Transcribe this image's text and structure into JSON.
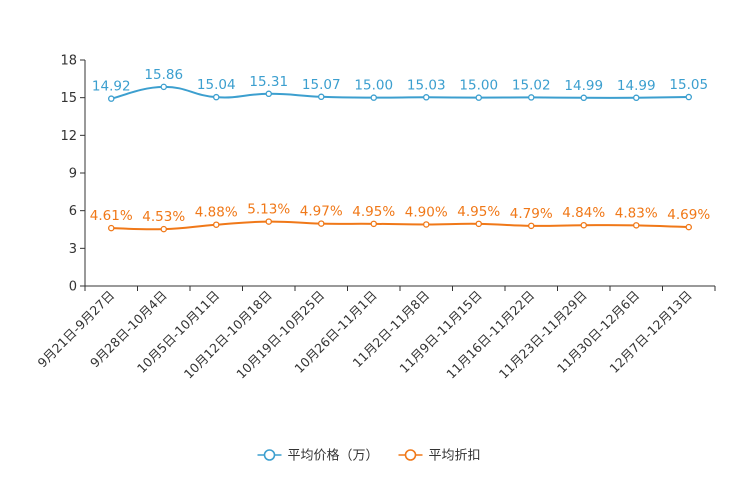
{
  "chart_data": {
    "type": "line",
    "title": "",
    "xlabel": "",
    "ylabel": "",
    "ylim": [
      0,
      18
    ],
    "yticks": [
      0,
      3,
      6,
      9,
      12,
      15,
      18
    ],
    "grid": false,
    "legend_position": "bottom-center",
    "categories": [
      "9月21日-9月27日",
      "9月28日-10月4日",
      "10月5日-10月11日",
      "10月12日-10月18日",
      "10月19日-10月25日",
      "10月26日-11月1日",
      "11月2日-11月8日",
      "11月9日-11月15日",
      "11月16日-11月22日",
      "11月23日-11月29日",
      "11月30日-12月6日",
      "12月7日-12月13日"
    ],
    "series": [
      {
        "name": "平均价格（万）",
        "color": "#3c9fcf",
        "values": [
          14.92,
          15.86,
          15.04,
          15.31,
          15.07,
          15.0,
          15.03,
          15.0,
          15.02,
          14.99,
          14.99,
          15.05
        ],
        "labels": [
          "14.92",
          "15.86",
          "15.04",
          "15.31",
          "15.07",
          "15.00",
          "15.03",
          "15.00",
          "15.02",
          "14.99",
          "14.99",
          "15.05"
        ]
      },
      {
        "name": "平均折扣",
        "color": "#f07818",
        "values": [
          4.61,
          4.53,
          4.88,
          5.13,
          4.97,
          4.95,
          4.9,
          4.95,
          4.79,
          4.84,
          4.83,
          4.69
        ],
        "labels": [
          "4.61%",
          "4.53%",
          "4.88%",
          "5.13%",
          "4.97%",
          "4.95%",
          "4.90%",
          "4.95%",
          "4.79%",
          "4.84%",
          "4.83%",
          "4.69%"
        ]
      }
    ]
  }
}
